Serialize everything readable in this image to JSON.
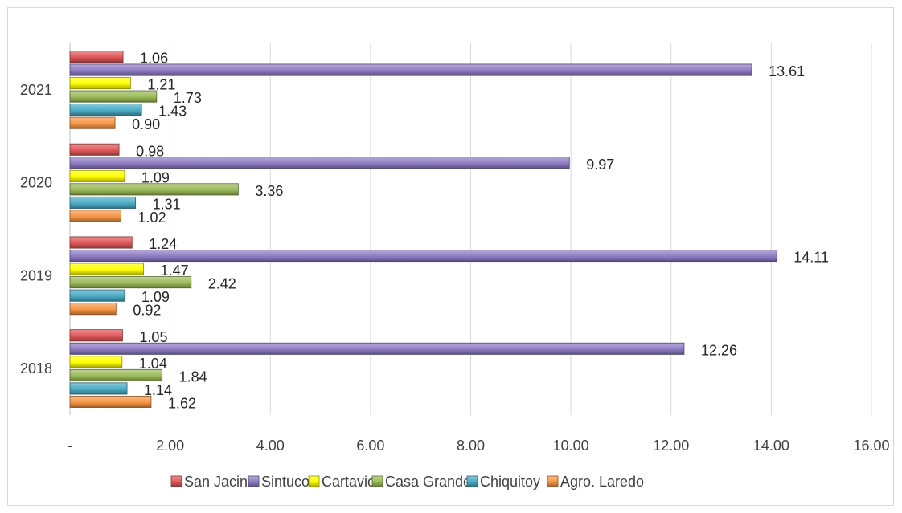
{
  "chart_data": {
    "type": "bar",
    "orientation": "horizontal",
    "categories": [
      "2018",
      "2019",
      "2020",
      "2021"
    ],
    "series": [
      {
        "name": "San Jacinto",
        "color": "#e15759",
        "values": [
          1.05,
          1.24,
          0.98,
          1.06
        ],
        "labels": [
          "1.05",
          "1.24",
          "0.98",
          "1.06"
        ]
      },
      {
        "name": "Sintuco",
        "color": "#8e7cc3",
        "values": [
          12.26,
          14.11,
          9.97,
          13.61
        ],
        "labels": [
          "12.26",
          "14.11",
          "9.97",
          "13.61"
        ]
      },
      {
        "name": "Cartavio",
        "color": "#ffff00",
        "values": [
          1.04,
          1.47,
          1.09,
          1.21
        ],
        "labels": [
          "1.04",
          "1.47",
          "1.09",
          "1.21"
        ]
      },
      {
        "name": "Casa Grande",
        "color": "#9bbb59",
        "values": [
          1.84,
          2.42,
          3.36,
          1.73
        ],
        "labels": [
          "1.84",
          "2.42",
          "3.36",
          "1.73"
        ]
      },
      {
        "name": "Chiquitoy",
        "color": "#4bacc6",
        "values": [
          1.14,
          1.09,
          1.31,
          1.43
        ],
        "labels": [
          "1.14",
          "1.09",
          "1.31",
          "1.43"
        ]
      },
      {
        "name": "Agro. Laredo",
        "color": "#f79646",
        "values": [
          1.62,
          0.92,
          1.02,
          0.9
        ],
        "labels": [
          "1.62",
          "0.92",
          "1.02",
          "0.90"
        ]
      }
    ],
    "xlim": [
      0,
      16
    ],
    "xticks": [
      "-",
      "2.00",
      "4.00",
      "6.00",
      "8.00",
      "10.00",
      "12.00",
      "14.00",
      "16.00"
    ],
    "grid": true,
    "legend_position": "bottom"
  }
}
